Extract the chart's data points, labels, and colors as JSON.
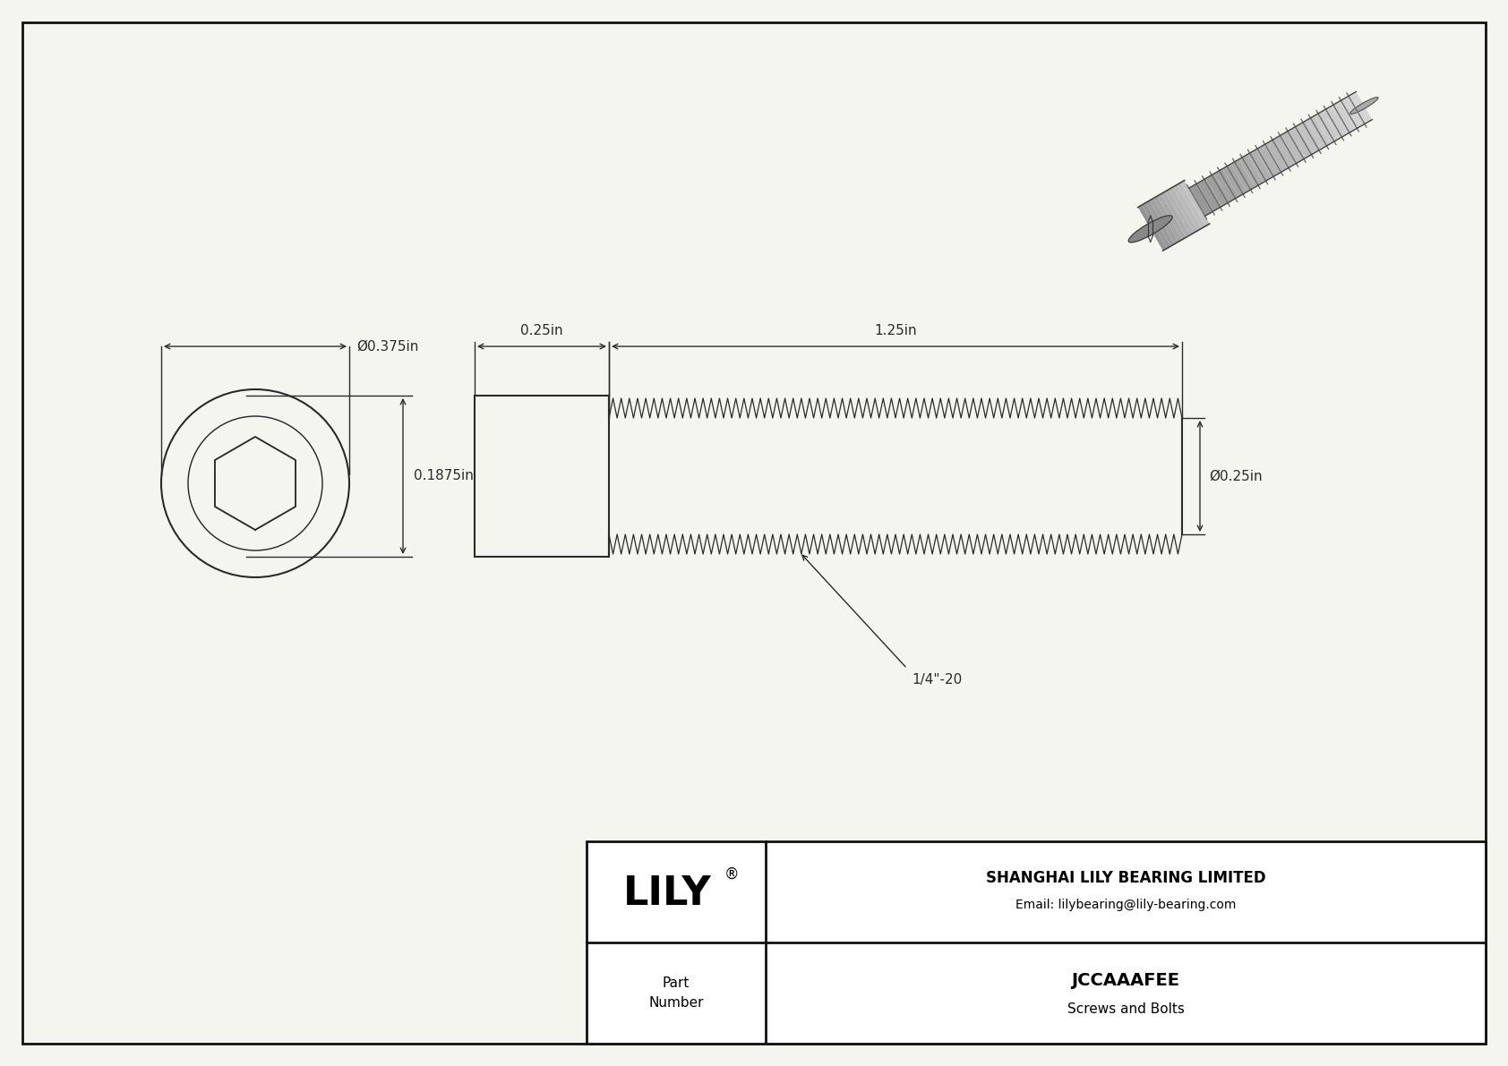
{
  "drawing_bg": "#f5f5f0",
  "line_color": "#2a2a2a",
  "dim_color": "#2a2a2a",
  "border_color": "#111111",
  "company": "SHANGHAI LILY BEARING LIMITED",
  "email": "Email: lilybearing@lily-bearing.com",
  "part_number": "JCCAAAFEE",
  "category": "Screws and Bolts",
  "part_label": "Part\nNumber",
  "dim_head_dia": "Ø0.375in",
  "dim_head_height": "0.1875in",
  "dim_shaft_len": "1.25in",
  "dim_head_len": "0.25in",
  "dim_shaft_dia": "Ø0.25in",
  "dim_thread": "1/4\"-20",
  "font_size_dim": 11,
  "font_size_logo": 32,
  "font_size_company": 12,
  "font_size_email": 10,
  "font_size_part": 14,
  "font_size_cat": 11
}
